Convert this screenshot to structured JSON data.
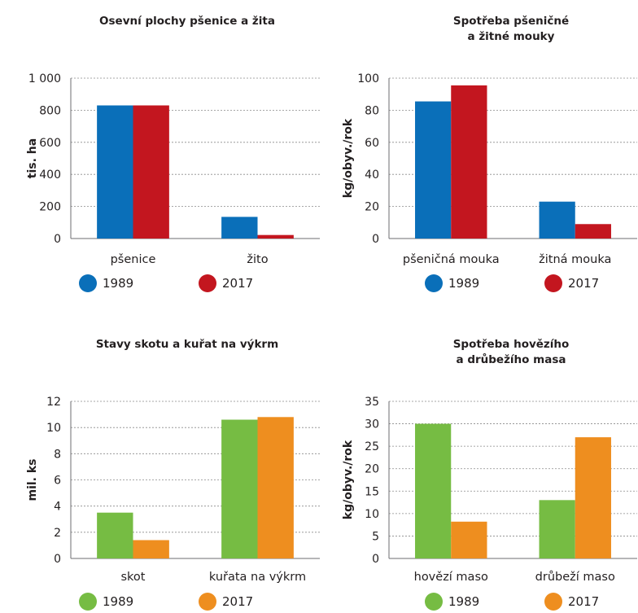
{
  "chart_data": [
    {
      "type": "bar",
      "title": [
        "Osevní plochy pšenice a žita"
      ],
      "ylabel": "tis. ha",
      "ylim": [
        0,
        1000
      ],
      "yticks": [
        0,
        200,
        400,
        600,
        800,
        1000
      ],
      "ytick_labels": [
        "0",
        "200",
        "400",
        "600",
        "800",
        "1 000"
      ],
      "categories": [
        "pšenice",
        "žito"
      ],
      "series": [
        {
          "name": "1989",
          "color": "#0a6fb9",
          "values": [
            830,
            135
          ]
        },
        {
          "name": "2017",
          "color": "#c3161f",
          "values": [
            830,
            22
          ]
        }
      ],
      "grid": true,
      "legend": "bottom"
    },
    {
      "type": "bar",
      "title": [
        "Spotřeba pšeničné",
        "a žitné mouky"
      ],
      "ylabel": "kg/obyv./rok",
      "ylim": [
        0,
        100
      ],
      "yticks": [
        0,
        20,
        40,
        60,
        80,
        100
      ],
      "ytick_labels": [
        "0",
        "20",
        "40",
        "60",
        "80",
        "100"
      ],
      "categories": [
        "pšeničná mouka",
        "žitná mouka"
      ],
      "series": [
        {
          "name": "1989",
          "color": "#0a6fb9",
          "values": [
            85.5,
            23
          ]
        },
        {
          "name": "2017",
          "color": "#c3161f",
          "values": [
            95.5,
            9
          ]
        }
      ],
      "grid": true,
      "legend": "bottom"
    },
    {
      "type": "bar",
      "title": [
        "Stavy skotu a kuřat na výkrm"
      ],
      "ylabel": "mil. ks",
      "ylim": [
        0,
        12
      ],
      "yticks": [
        0,
        2,
        4,
        6,
        8,
        10,
        12
      ],
      "ytick_labels": [
        "0",
        "2",
        "4",
        "6",
        "8",
        "10",
        "12"
      ],
      "categories": [
        "skot",
        "kuřata na výkrm"
      ],
      "series": [
        {
          "name": "1989",
          "color": "#76bc43",
          "values": [
            3.5,
            10.6
          ]
        },
        {
          "name": "2017",
          "color": "#ee8e1f",
          "values": [
            1.4,
            10.8
          ]
        }
      ],
      "grid": true,
      "legend": "bottom"
    },
    {
      "type": "bar",
      "title": [
        "Spotřeba hovězího",
        "a drůbežího masa"
      ],
      "ylabel": "kg/obyv./rok",
      "ylim": [
        0,
        35
      ],
      "yticks": [
        0,
        5,
        10,
        15,
        20,
        25,
        30,
        35
      ],
      "ytick_labels": [
        "0",
        "5",
        "10",
        "15",
        "20",
        "25",
        "30",
        "35"
      ],
      "categories": [
        "hovězí maso",
        "drůbeží maso"
      ],
      "series": [
        {
          "name": "1989",
          "color": "#76bc43",
          "values": [
            30,
            13
          ]
        },
        {
          "name": "2017",
          "color": "#ee8e1f",
          "values": [
            8.2,
            27
          ]
        }
      ],
      "grid": true,
      "legend": "bottom"
    }
  ]
}
